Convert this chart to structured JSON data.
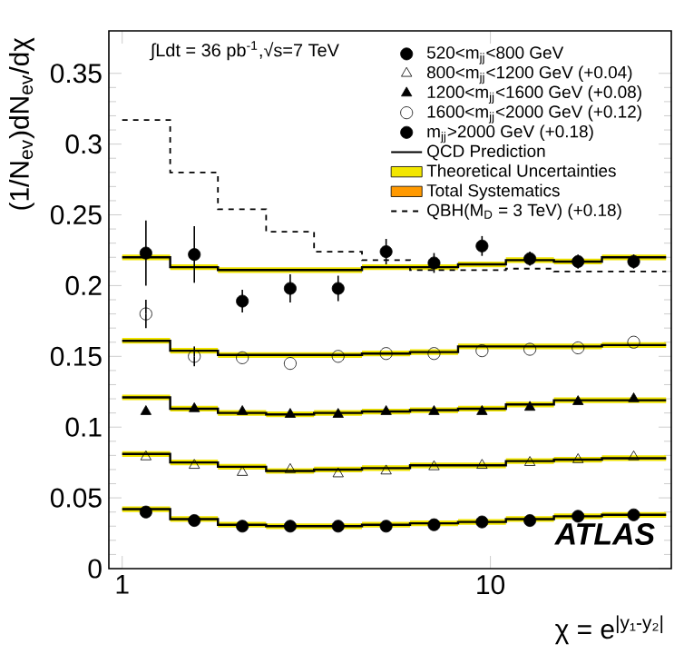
{
  "chart_data": {
    "type": "scatter",
    "xlabel": "χ = e$^{|y₁-y₂|}$",
    "ylabel": "(1/N$_{ev}$)dN$_{ev}$/dχ",
    "log": "x",
    "xlim": [
      0.92,
      31
    ],
    "xticks": [
      1,
      10
    ],
    "ylim": [
      0,
      0.38
    ],
    "yticks": [
      0,
      0.05,
      0.1,
      0.15,
      0.2,
      0.25,
      0.3,
      0.35
    ],
    "legend": "top right",
    "annotations": [
      "∫Ldt = 36 pb$^{-1}$,√s=7 TeV",
      "ATLAS"
    ],
    "series": [
      {
        "name": "520<m$_{jj}$<800 GeV",
        "marker": "circle",
        "color": "#000000",
        "x": [
          1.16,
          1.57,
          2.12,
          2.86,
          3.86,
          5.21,
          7.03,
          9.49,
          12.8,
          17.3,
          24.5
        ],
        "values": [
          0.04,
          0.034,
          0.03,
          0.03,
          0.03,
          0.03,
          0.031,
          0.033,
          0.034,
          0.037,
          0.038
        ]
      },
      {
        "name": "800<m$_{jj}$<1200 GeV (+0.04)",
        "marker": "triangle open",
        "color": "#000000",
        "x": [
          1.16,
          1.57,
          2.12,
          2.86,
          3.86,
          5.21,
          7.03,
          9.49,
          12.8,
          17.3,
          24.5
        ],
        "values": [
          0.079,
          0.073,
          0.068,
          0.07,
          0.067,
          0.069,
          0.072,
          0.073,
          0.075,
          0.077,
          0.079
        ]
      },
      {
        "name": "1200<m$_{jj}$<1600 GeV (+0.08)",
        "marker": "triangle",
        "color": "#000000",
        "x": [
          1.16,
          1.57,
          2.12,
          2.86,
          3.86,
          5.21,
          7.03,
          9.49,
          12.8,
          17.3,
          24.5
        ],
        "values": [
          0.111,
          0.113,
          0.111,
          0.109,
          0.109,
          0.111,
          0.111,
          0.111,
          0.114,
          0.118,
          0.12
        ]
      },
      {
        "name": "1600<m$_{jj}$<2000 GeV (+0.12)",
        "marker": "circle open",
        "color": "#000000",
        "x": [
          1.16,
          1.57,
          2.12,
          2.86,
          3.86,
          5.21,
          7.03,
          9.49,
          12.8,
          17.3,
          24.5
        ],
        "values": [
          0.18,
          0.15,
          0.149,
          0.145,
          0.15,
          0.152,
          0.152,
          0.154,
          0.155,
          0.156,
          0.16
        ],
        "errors": [
          0.01,
          0.007,
          null,
          null,
          null,
          null,
          null,
          null,
          null,
          null,
          null
        ]
      },
      {
        "name": "m$_{jj}$>2000 GeV (+0.18)",
        "marker": "circle",
        "color": "#000000",
        "x": [
          1.16,
          1.57,
          2.12,
          2.86,
          3.86,
          5.21,
          7.03,
          9.49,
          12.8,
          17.3,
          24.5
        ],
        "values": [
          0.223,
          0.222,
          0.189,
          0.198,
          0.198,
          0.224,
          0.216,
          0.228,
          0.219,
          0.217,
          0.217
        ],
        "errors": [
          0.023,
          0.02,
          0.008,
          0.01,
          0.009,
          0.009,
          0.007,
          0.007,
          0.005,
          0.005,
          0.005
        ]
      },
      {
        "name": "QCD Prediction",
        "type": "step",
        "color": "#000000",
        "x": [
          1,
          1.35,
          1.82,
          2.46,
          3.32,
          4.48,
          6.05,
          8.17,
          11.02,
          14.88,
          20.09,
          30
        ],
        "values": [
          0.042,
          0.035,
          0.031,
          0.03,
          0.03,
          0.031,
          0.032,
          0.033,
          0.035,
          0.037,
          0.038,
          0.038
        ],
        "lower": [
          0.04,
          0.033,
          0.029,
          0.028,
          0.028,
          0.029,
          0.03,
          0.031,
          0.033,
          0.035,
          0.036,
          0.036
        ],
        "upper": [
          0.044,
          0.037,
          0.033,
          0.032,
          0.032,
          0.033,
          0.034,
          0.035,
          0.037,
          0.039,
          0.04,
          0.04
        ]
      },
      {
        "type": "step",
        "color": "#000000",
        "x": [
          1,
          1.35,
          1.82,
          2.46,
          3.32,
          4.48,
          6.05,
          8.17,
          11.02,
          14.88,
          20.09,
          30
        ],
        "values": [
          0.081,
          0.075,
          0.072,
          0.069,
          0.07,
          0.071,
          0.073,
          0.073,
          0.076,
          0.077,
          0.078,
          0.078
        ],
        "lower": [
          0.079,
          0.073,
          0.07,
          0.067,
          0.068,
          0.069,
          0.071,
          0.071,
          0.074,
          0.075,
          0.076,
          0.076
        ],
        "upper": [
          0.083,
          0.077,
          0.074,
          0.071,
          0.072,
          0.073,
          0.075,
          0.075,
          0.078,
          0.079,
          0.08,
          0.08
        ]
      },
      {
        "type": "step",
        "color": "#000000",
        "x": [
          1,
          1.35,
          1.82,
          2.46,
          3.32,
          4.48,
          6.05,
          8.17,
          11.02,
          14.88,
          20.09,
          30
        ],
        "values": [
          0.121,
          0.113,
          0.11,
          0.109,
          0.11,
          0.111,
          0.112,
          0.113,
          0.116,
          0.119,
          0.119,
          0.119
        ],
        "lower": [
          0.119,
          0.111,
          0.108,
          0.107,
          0.108,
          0.109,
          0.11,
          0.111,
          0.114,
          0.117,
          0.117,
          0.117
        ],
        "upper": [
          0.123,
          0.115,
          0.112,
          0.111,
          0.112,
          0.113,
          0.114,
          0.115,
          0.118,
          0.121,
          0.121,
          0.121
        ]
      },
      {
        "type": "step",
        "color": "#000000",
        "x": [
          1,
          1.35,
          1.82,
          2.46,
          3.32,
          4.48,
          6.05,
          8.17,
          11.02,
          14.88,
          20.09,
          30
        ],
        "values": [
          0.161,
          0.154,
          0.151,
          0.151,
          0.151,
          0.152,
          0.153,
          0.157,
          0.157,
          0.157,
          0.158,
          0.158
        ],
        "lower": [
          0.159,
          0.152,
          0.149,
          0.149,
          0.149,
          0.15,
          0.151,
          0.155,
          0.155,
          0.155,
          0.156,
          0.156
        ],
        "upper": [
          0.163,
          0.156,
          0.153,
          0.153,
          0.153,
          0.154,
          0.155,
          0.159,
          0.159,
          0.159,
          0.16,
          0.16
        ]
      },
      {
        "type": "step",
        "color": "#000000",
        "x": [
          1,
          1.35,
          1.82,
          2.46,
          3.32,
          4.48,
          6.05,
          8.17,
          11.02,
          14.88,
          20.09,
          30
        ],
        "values": [
          0.22,
          0.213,
          0.211,
          0.211,
          0.211,
          0.213,
          0.213,
          0.215,
          0.218,
          0.217,
          0.22,
          0.22
        ],
        "lower": [
          0.218,
          0.211,
          0.209,
          0.209,
          0.209,
          0.211,
          0.211,
          0.213,
          0.216,
          0.215,
          0.218,
          0.218
        ],
        "upper": [
          0.222,
          0.215,
          0.213,
          0.213,
          0.213,
          0.215,
          0.215,
          0.217,
          0.22,
          0.219,
          0.222,
          0.222
        ]
      },
      {
        "name": "Theoretical Uncertainties",
        "type": "area",
        "color": "#f2e600"
      },
      {
        "name": "Total Systematics",
        "type": "area",
        "color": "#ff9900"
      },
      {
        "name": "QBH(M$_{D}$ = 3 TeV) (+0.18)",
        "type": "step",
        "line_style": "dashed",
        "color": "#000000",
        "x": [
          1,
          1.35,
          1.82,
          2.46,
          3.32,
          4.48,
          6.05,
          8.17,
          11.02,
          14.88,
          20.09,
          30
        ],
        "values": [
          0.317,
          0.28,
          0.254,
          0.238,
          0.224,
          0.218,
          0.211,
          0.211,
          0.212,
          0.21,
          0.21,
          0.21
        ]
      }
    ]
  }
}
